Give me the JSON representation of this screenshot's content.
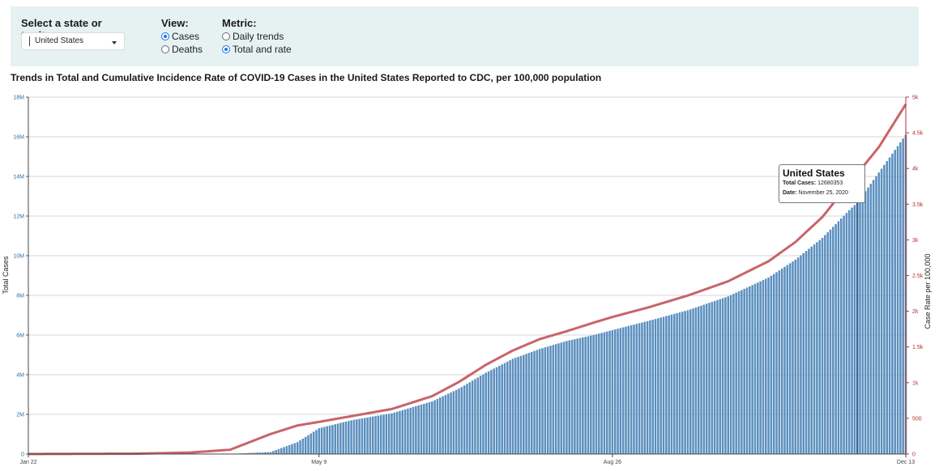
{
  "filters": {
    "state": {
      "label": "Select a state or territory:",
      "selected": "United States"
    },
    "view": {
      "label": "View:",
      "options": [
        {
          "label": "Cases",
          "checked": true
        },
        {
          "label": "Deaths",
          "checked": false
        }
      ]
    },
    "metric": {
      "label": "Metric:",
      "options": [
        {
          "label": "Daily trends",
          "checked": false
        },
        {
          "label": "Total and rate",
          "checked": true
        }
      ]
    }
  },
  "chart_title": "Trends in Total and Cumulative Incidence Rate of COVID-19 Cases in the United States Reported to CDC, per 100,000 population",
  "tooltip": {
    "title": "United States",
    "total_cases_label": "Total Cases:",
    "total_cases_value": "12680353",
    "date_label": "Date:",
    "date_value": "November 25, 2020"
  },
  "colors": {
    "bar": "#5b8fbf",
    "line": "#c8646a",
    "left_axis_text": "#2e6ea8",
    "right_axis_text": "#b03030",
    "panel_bg": "#e6f2f2",
    "highlight_bar": "#2f6496"
  },
  "chart_data": {
    "type": "bar",
    "title": "Trends in Total and Cumulative Incidence Rate of COVID-19 Cases in the United States Reported to CDC, per 100,000 population",
    "xlabel": "",
    "ylabel": "Total Cases",
    "ylabel_right": "Case Rate per 100,000",
    "x_start": "Jan 22",
    "x_end": "Dec 13",
    "x_ticks": [
      {
        "label": "Jan 22",
        "day": 0
      },
      {
        "label": "May 9",
        "day": 108
      },
      {
        "label": "Aug 26",
        "day": 217
      },
      {
        "label": "Dec 13",
        "day": 326
      }
    ],
    "ylim": [
      0,
      18000000
    ],
    "y_ticks": [
      {
        "value": 0,
        "label": "0"
      },
      {
        "value": 2000000,
        "label": "2M"
      },
      {
        "value": 4000000,
        "label": "4M"
      },
      {
        "value": 6000000,
        "label": "6M"
      },
      {
        "value": 8000000,
        "label": "8M"
      },
      {
        "value": 10000000,
        "label": "10M"
      },
      {
        "value": 12000000,
        "label": "12M"
      },
      {
        "value": 14000000,
        "label": "14M"
      },
      {
        "value": 16000000,
        "label": "16M"
      },
      {
        "value": 18000000,
        "label": "18M"
      }
    ],
    "y2lim": [
      0,
      5000
    ],
    "y2_ticks": [
      {
        "value": 0,
        "label": "0"
      },
      {
        "value": 500,
        "label": "500"
      },
      {
        "value": 1000,
        "label": "1k"
      },
      {
        "value": 1500,
        "label": "1.5k"
      },
      {
        "value": 2000,
        "label": "2k"
      },
      {
        "value": 2500,
        "label": "2.5k"
      },
      {
        "value": 3000,
        "label": "3k"
      },
      {
        "value": 3500,
        "label": "3.5k"
      },
      {
        "value": 4000,
        "label": "4k"
      },
      {
        "value": 4500,
        "label": "4.5k"
      },
      {
        "value": 5000,
        "label": "5k"
      }
    ],
    "series": [
      {
        "name": "Total Cases",
        "axis": "left",
        "kind": "bar",
        "knots": [
          [
            0,
            0
          ],
          [
            40,
            15
          ],
          [
            60,
            500
          ],
          [
            75,
            5000
          ],
          [
            90,
            100000
          ],
          [
            100,
            600000
          ],
          [
            108,
            1300000
          ],
          [
            120,
            1700000
          ],
          [
            135,
            2050000
          ],
          [
            150,
            2650000
          ],
          [
            160,
            3300000
          ],
          [
            170,
            4100000
          ],
          [
            180,
            4800000
          ],
          [
            190,
            5300000
          ],
          [
            200,
            5700000
          ],
          [
            210,
            6000000
          ],
          [
            217,
            6250000
          ],
          [
            230,
            6700000
          ],
          [
            245,
            7250000
          ],
          [
            260,
            7950000
          ],
          [
            275,
            8900000
          ],
          [
            285,
            9800000
          ],
          [
            295,
            10900000
          ],
          [
            305,
            12300000
          ],
          [
            308,
            12680353
          ],
          [
            316,
            14200000
          ],
          [
            326,
            16100000
          ]
        ]
      },
      {
        "name": "Case Rate per 100,000",
        "axis": "right",
        "kind": "line",
        "knots": [
          [
            0,
            0
          ],
          [
            40,
            5
          ],
          [
            60,
            20
          ],
          [
            75,
            60
          ],
          [
            90,
            280
          ],
          [
            100,
            400
          ],
          [
            108,
            450
          ],
          [
            120,
            530
          ],
          [
            135,
            630
          ],
          [
            150,
            810
          ],
          [
            160,
            1010
          ],
          [
            170,
            1250
          ],
          [
            180,
            1450
          ],
          [
            190,
            1610
          ],
          [
            200,
            1720
          ],
          [
            210,
            1840
          ],
          [
            217,
            1920
          ],
          [
            230,
            2050
          ],
          [
            245,
            2220
          ],
          [
            260,
            2420
          ],
          [
            275,
            2700
          ],
          [
            285,
            2970
          ],
          [
            295,
            3320
          ],
          [
            305,
            3790
          ],
          [
            316,
            4300
          ],
          [
            326,
            4900
          ]
        ]
      }
    ],
    "highlight": {
      "day": 308,
      "date": "November 25, 2020",
      "value": 12680353
    }
  }
}
